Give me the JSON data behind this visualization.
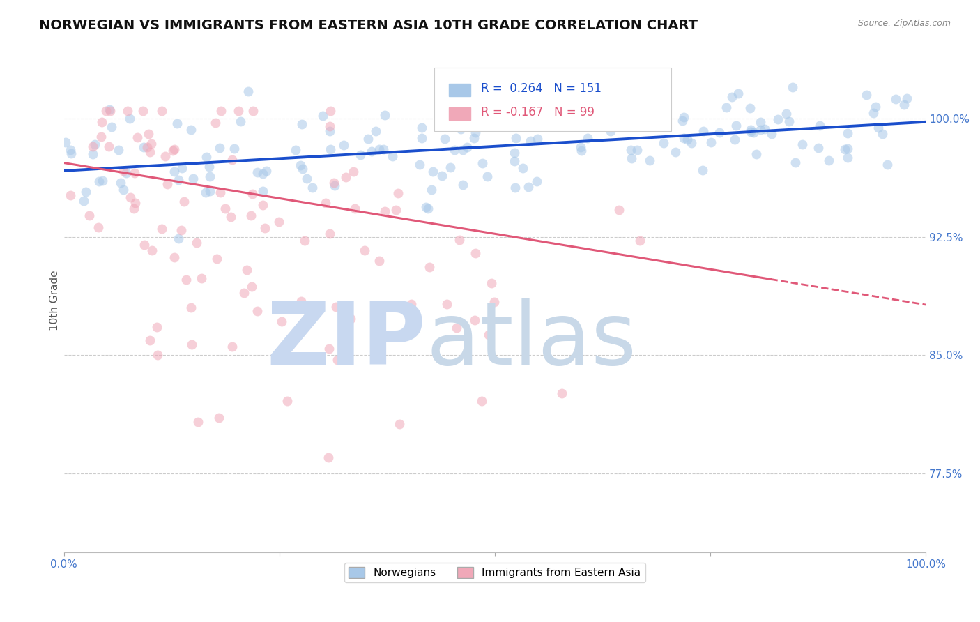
{
  "title": "NORWEGIAN VS IMMIGRANTS FROM EASTERN ASIA 10TH GRADE CORRELATION CHART",
  "source_text": "Source: ZipAtlas.com",
  "ylabel": "10th Grade",
  "xmin": 0.0,
  "xmax": 1.0,
  "ymin": 0.725,
  "ymax": 1.045,
  "yticks": [
    0.775,
    0.85,
    0.925,
    1.0
  ],
  "ytick_labels": [
    "77.5%",
    "85.0%",
    "92.5%",
    "100.0%"
  ],
  "blue_R": 0.264,
  "blue_N": 151,
  "pink_R": -0.167,
  "pink_N": 99,
  "blue_color": "#a8c8e8",
  "pink_color": "#f0a8b8",
  "trend_blue_color": "#1a4ecc",
  "trend_pink_color": "#e05878",
  "watermark_zip_color": "#c8d8f0",
  "watermark_atlas_color": "#c8d8e8",
  "legend_label_blue": "Norwegians",
  "legend_label_pink": "Immigrants from Eastern Asia",
  "background_color": "#ffffff",
  "grid_color": "#cccccc",
  "axis_color": "#4477cc",
  "title_color": "#111111",
  "title_fontsize": 14,
  "label_fontsize": 11,
  "marker_size": 100,
  "blue_trend_start_y": 0.967,
  "blue_trend_end_y": 0.998,
  "pink_trend_start_y": 0.972,
  "pink_trend_end_y": 0.882
}
